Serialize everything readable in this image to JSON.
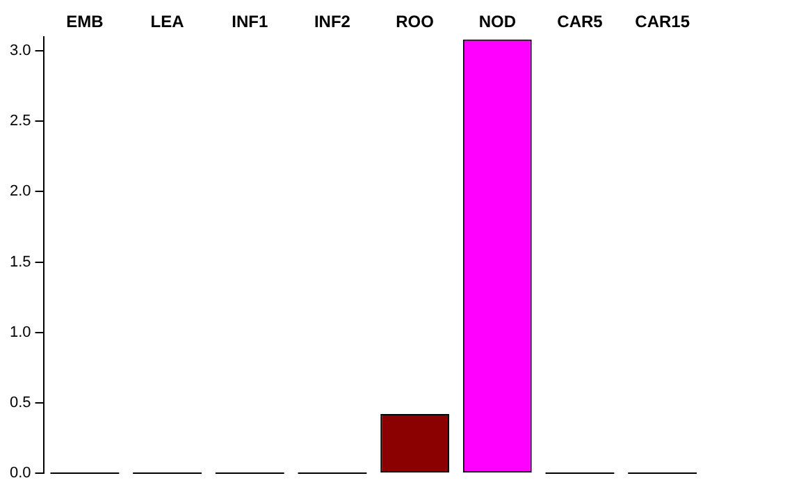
{
  "chart_data": {
    "type": "bar",
    "categories": [
      "EMB",
      "LEA",
      "INF1",
      "INF2",
      "ROO",
      "NOD",
      "CAR5",
      "CAR15"
    ],
    "values": [
      0,
      0,
      0,
      0,
      0.42,
      3.08,
      0,
      0
    ],
    "colors": [
      "#000000",
      "#000000",
      "#000000",
      "#000000",
      "#8b0000",
      "#ff00ff",
      "#000000",
      "#000000"
    ],
    "ylim": [
      0,
      3.1
    ],
    "yticks": [
      {
        "value": 0,
        "label": "0.0"
      },
      {
        "value": 0.5,
        "label": "0.5"
      },
      {
        "value": 1,
        "label": "1.0"
      },
      {
        "value": 1.5,
        "label": "1.5"
      },
      {
        "value": 2,
        "label": "2.0"
      },
      {
        "value": 2.5,
        "label": "2.5"
      },
      {
        "value": 3,
        "label": "3.0"
      }
    ],
    "grid": false,
    "legend": false
  }
}
